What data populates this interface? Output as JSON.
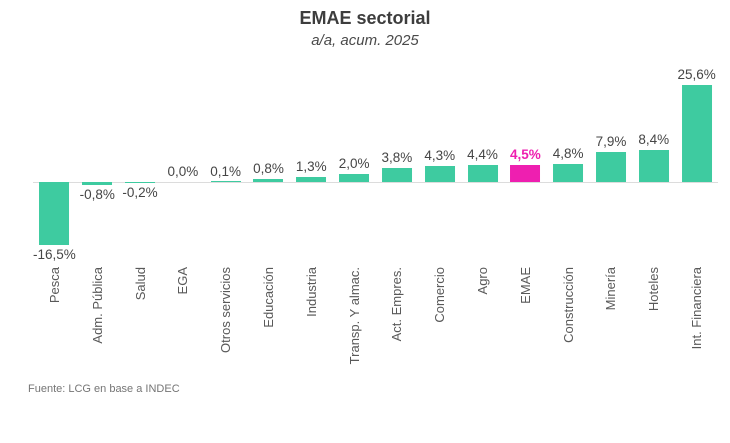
{
  "title": "EMAE sectorial",
  "subtitle": "a/a, acum. 2025",
  "source": "Fuente: LCG en base a INDEC",
  "chart_data": {
    "type": "bar",
    "title": "EMAE sectorial",
    "subtitle": "a/a, acum. 2025",
    "unit": "%",
    "categories": [
      "Pesca",
      "Adm. Pública",
      "Salud",
      "EGA",
      "Otros servicios",
      "Educación",
      "Industria",
      "Transp. Y almac.",
      "Act. Empres.",
      "Comercio",
      "Agro",
      "EMAE",
      "Construcción",
      "Minería",
      "Hoteles",
      "Int. Financiera"
    ],
    "values": [
      -16.5,
      -0.8,
      -0.2,
      0.0,
      0.1,
      0.8,
      1.3,
      2.0,
      3.8,
      4.3,
      4.4,
      4.5,
      4.8,
      7.9,
      8.4,
      25.6
    ],
    "value_labels": [
      "-16,5%",
      "-0,8%",
      "-0,2%",
      "0,0%",
      "0,1%",
      "0,8%",
      "1,3%",
      "2,0%",
      "3,8%",
      "4,3%",
      "4,4%",
      "4,5%",
      "4,8%",
      "7,9%",
      "8,4%",
      "25,6%"
    ],
    "highlight_index": 11,
    "colors": {
      "bar": "#3ECBA0",
      "highlight": "#EE1FB0",
      "label": "#454545",
      "axis_line": "#DCDCDC"
    },
    "ylim": [
      -18,
      27
    ],
    "grid": false,
    "legend": false,
    "source": "Fuente: LCG en base a INDEC"
  }
}
